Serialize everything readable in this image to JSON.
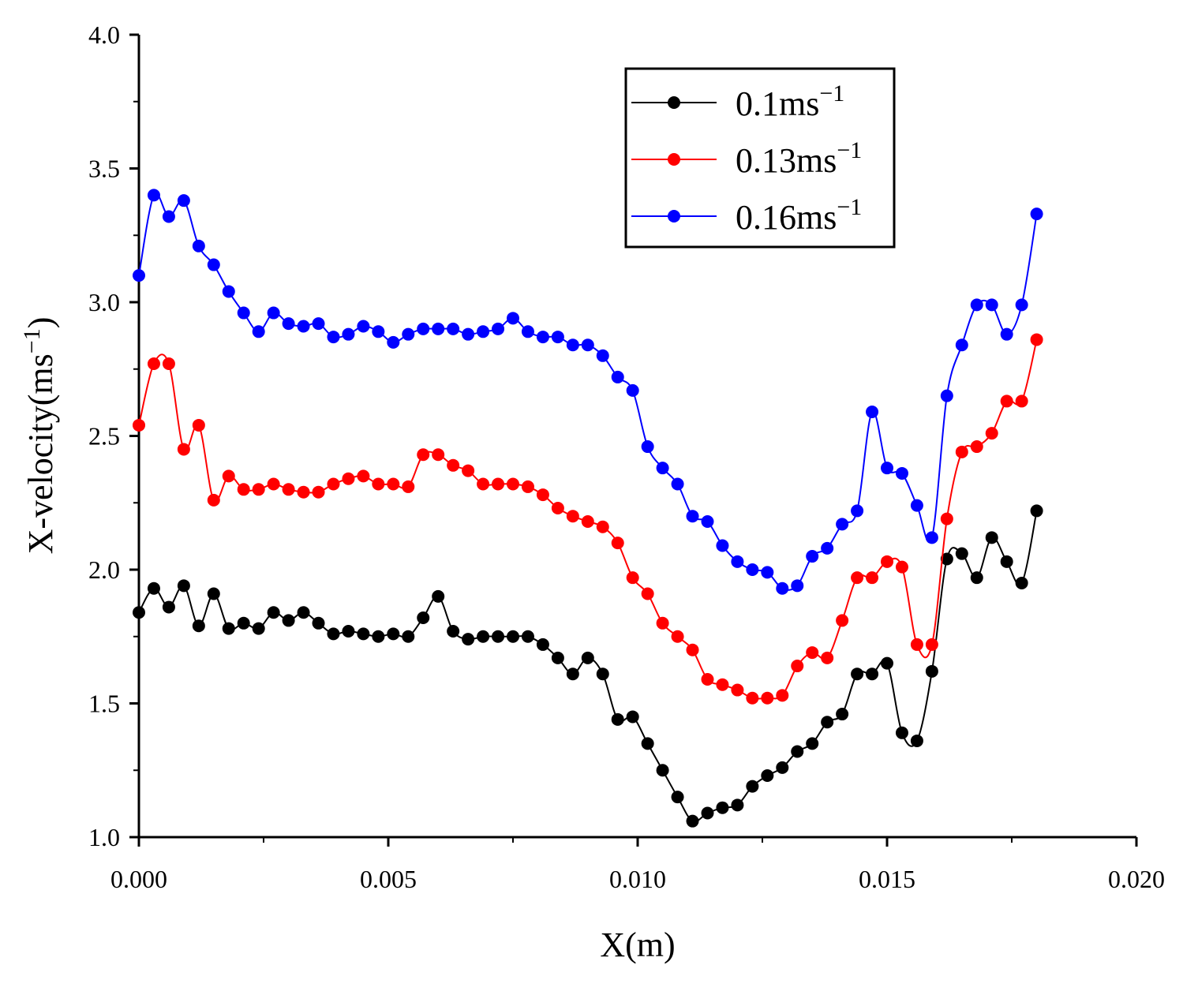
{
  "chart_data": {
    "type": "line",
    "title": "",
    "xlabel": "X(m)",
    "ylabel": "X-velocity(ms",
    "ylabel_sup": "−1",
    "ylabel_close": ")",
    "xlim": [
      0.0,
      0.02
    ],
    "ylim": [
      1.0,
      4.0
    ],
    "xticks": [
      0.0,
      0.005,
      0.01,
      0.015,
      0.02
    ],
    "xtick_labels": [
      "0.000",
      "0.005",
      "0.010",
      "0.015",
      "0.020"
    ],
    "yticks": [
      1.0,
      1.5,
      2.0,
      2.5,
      3.0,
      3.5,
      4.0
    ],
    "ytick_labels": [
      "1.0",
      "1.5",
      "2.0",
      "2.5",
      "3.0",
      "3.5",
      "4.0"
    ],
    "grid": false,
    "legend_position": "top-right",
    "x": [
      0.0,
      0.0003,
      0.0006,
      0.0009,
      0.0012,
      0.0015,
      0.0018,
      0.0021,
      0.0024,
      0.0027,
      0.003,
      0.0033,
      0.0036,
      0.0039,
      0.0042,
      0.0045,
      0.0048,
      0.0051,
      0.0054,
      0.0057,
      0.006,
      0.0063,
      0.0066,
      0.0069,
      0.0072,
      0.0075,
      0.0078,
      0.0081,
      0.0084,
      0.0087,
      0.009,
      0.0093,
      0.0096,
      0.0099,
      0.0102,
      0.0105,
      0.0108,
      0.0111,
      0.0114,
      0.0117,
      0.012,
      0.0123,
      0.0126,
      0.0129,
      0.0132,
      0.0135,
      0.0138,
      0.0141,
      0.0144,
      0.0147,
      0.015,
      0.0153,
      0.0156,
      0.0159,
      0.0162,
      0.0165,
      0.0168,
      0.0171,
      0.0174,
      0.0177,
      0.018
    ],
    "series": [
      {
        "name": "0.1ms",
        "name_sup": "−1",
        "color": "#000000",
        "values": [
          1.84,
          1.93,
          1.86,
          1.94,
          1.79,
          1.91,
          1.78,
          1.8,
          1.78,
          1.84,
          1.81,
          1.84,
          1.8,
          1.76,
          1.77,
          1.76,
          1.75,
          1.76,
          1.75,
          1.82,
          1.9,
          1.77,
          1.74,
          1.75,
          1.75,
          1.75,
          1.75,
          1.72,
          1.67,
          1.61,
          1.67,
          1.61,
          1.44,
          1.45,
          1.35,
          1.25,
          1.15,
          1.06,
          1.09,
          1.11,
          1.12,
          1.19,
          1.23,
          1.26,
          1.32,
          1.35,
          1.43,
          1.46,
          1.61,
          1.61,
          1.65,
          1.39,
          1.36,
          1.62,
          2.04,
          2.06,
          1.97,
          2.12,
          2.03,
          1.95,
          2.22
        ]
      },
      {
        "name": "0.13ms",
        "name_sup": "−1",
        "color": "#ff0000",
        "values": [
          2.54,
          2.77,
          2.77,
          2.45,
          2.54,
          2.26,
          2.35,
          2.3,
          2.3,
          2.32,
          2.3,
          2.29,
          2.29,
          2.32,
          2.34,
          2.35,
          2.32,
          2.32,
          2.31,
          2.43,
          2.43,
          2.39,
          2.37,
          2.32,
          2.32,
          2.32,
          2.31,
          2.28,
          2.23,
          2.2,
          2.18,
          2.16,
          2.1,
          1.97,
          1.91,
          1.8,
          1.75,
          1.7,
          1.59,
          1.57,
          1.55,
          1.52,
          1.52,
          1.53,
          1.64,
          1.69,
          1.67,
          1.81,
          1.97,
          1.97,
          2.03,
          2.01,
          1.72,
          1.72,
          2.19,
          2.44,
          2.46,
          2.51,
          2.63,
          2.63,
          2.86
        ]
      },
      {
        "name": "0.16ms",
        "name_sup": "−1",
        "color": "#0000ff",
        "values": [
          3.1,
          3.4,
          3.32,
          3.38,
          3.21,
          3.14,
          3.04,
          2.96,
          2.89,
          2.96,
          2.92,
          2.91,
          2.92,
          2.87,
          2.88,
          2.91,
          2.89,
          2.85,
          2.88,
          2.9,
          2.9,
          2.9,
          2.88,
          2.89,
          2.9,
          2.94,
          2.89,
          2.87,
          2.87,
          2.84,
          2.84,
          2.8,
          2.72,
          2.67,
          2.46,
          2.38,
          2.32,
          2.2,
          2.18,
          2.09,
          2.03,
          2.0,
          1.99,
          1.93,
          1.94,
          2.05,
          2.08,
          2.17,
          2.22,
          2.59,
          2.38,
          2.36,
          2.24,
          2.12,
          2.65,
          2.84,
          2.99,
          2.99,
          2.88,
          2.99,
          3.33
        ]
      }
    ]
  }
}
